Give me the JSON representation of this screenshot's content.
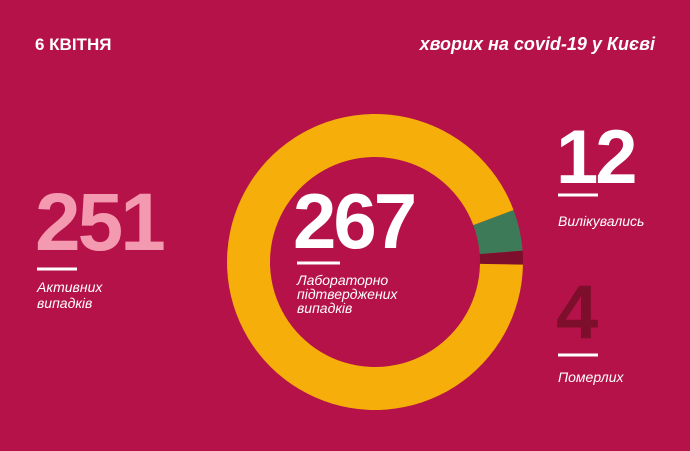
{
  "chart_data": {
    "type": "donut",
    "date": "6 КВІТНЯ",
    "title": "хворих на covid-19 у Києві",
    "total": 267,
    "total_label": "Лабораторно\nпідтверджених\nвипадків",
    "categories": [
      "Активних\nвипадків",
      "Вилікувались",
      "Померлих"
    ],
    "values": [
      251,
      12,
      4
    ],
    "colors": [
      "#f5ae0a",
      "#3d7a58",
      "#7d0f2c"
    ],
    "number_colors": [
      "#f49ab0",
      "#ffffff",
      "#7d0f2c"
    ]
  }
}
